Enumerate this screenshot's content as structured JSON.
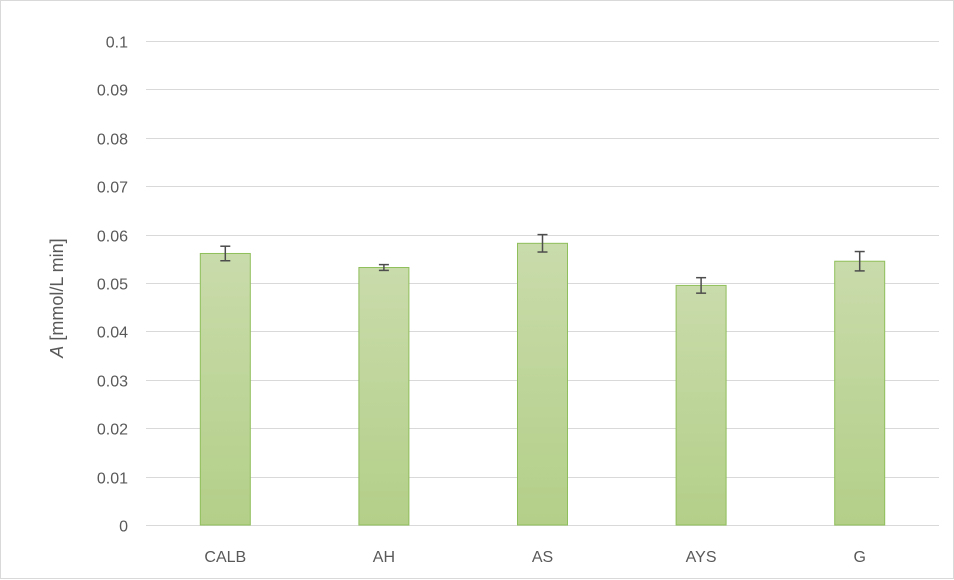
{
  "chart_data": {
    "type": "bar",
    "categories": [
      "CALB",
      "AH",
      "AS",
      "AYS",
      "G"
    ],
    "values": [
      0.0561,
      0.0532,
      0.0582,
      0.0495,
      0.0545
    ],
    "error": [
      0.0015,
      0.0006,
      0.0018,
      0.0016,
      0.002
    ],
    "ylim": [
      0,
      0.1
    ],
    "yticks": [
      "0",
      "0.01",
      "0.02",
      "0.03",
      "0.04",
      "0.05",
      "0.06",
      "0.07",
      "0.08",
      "0.09",
      "0.1"
    ],
    "ylabel_symbol": "A",
    "ylabel_unit": " [mmol/L min]",
    "xlabel": "",
    "title": "",
    "grid": true,
    "legend": "none",
    "colors": {
      "bar_top": "#c9dbab",
      "bar_bottom": "#b3cf88",
      "bar_border": "#8fbf5a",
      "error_bar": "#4d4d4d",
      "grid": "#d9d9d9",
      "axis_text": "#595959"
    }
  }
}
